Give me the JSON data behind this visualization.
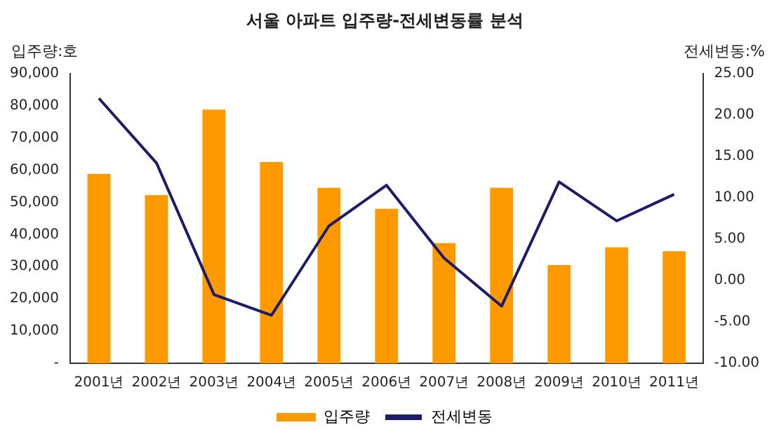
{
  "chart_data": {
    "type": "bar",
    "title": "서울 아파트 입주량-전세변동률 분석",
    "ylabel": "입주량:호",
    "y2label": "전세변동:%",
    "categories": [
      "2001년",
      "2002년",
      "2003년",
      "2004년",
      "2005년",
      "2006년",
      "2007년",
      "2008년",
      "2009년",
      "2010년",
      "2011년"
    ],
    "series": [
      {
        "name": "입주량",
        "color": "#ff9900",
        "values": [
          58800,
          52200,
          78800,
          62500,
          54500,
          48000,
          37300,
          54500,
          30500,
          36000,
          34800
        ]
      },
      {
        "name": "전세변동",
        "type": "line",
        "axis": "y2",
        "color": "#1c1c6b",
        "marker": "none",
        "values": [
          22.0,
          14.2,
          -1.7,
          -4.2,
          6.6,
          11.5,
          2.7,
          -3.1,
          11.9,
          7.2,
          10.4
        ]
      }
    ],
    "ylim": [
      0,
      90000
    ],
    "yticks": [
      {
        "value": 0,
        "label": "-"
      },
      {
        "value": 10000,
        "label": "10,000"
      },
      {
        "value": 20000,
        "label": "20,000"
      },
      {
        "value": 30000,
        "label": "30,000"
      },
      {
        "value": 40000,
        "label": "40,000"
      },
      {
        "value": 50000,
        "label": "50,000"
      },
      {
        "value": 60000,
        "label": "60,000"
      },
      {
        "value": 70000,
        "label": "70,000"
      },
      {
        "value": 80000,
        "label": "80,000"
      },
      {
        "value": 90000,
        "label": "90,000"
      }
    ],
    "y2lim": [
      -10,
      25
    ],
    "y2ticks": [
      {
        "value": -10,
        "label": "-10.00"
      },
      {
        "value": -5,
        "label": "-5.00"
      },
      {
        "value": 0,
        "label": "0.00"
      },
      {
        "value": 5,
        "label": "5.00"
      },
      {
        "value": 10,
        "label": "10.00"
      },
      {
        "value": 15,
        "label": "15.00"
      },
      {
        "value": 20,
        "label": "20.00"
      },
      {
        "value": 25,
        "label": "25.00"
      }
    ],
    "grid": false,
    "legend": "bottom"
  }
}
